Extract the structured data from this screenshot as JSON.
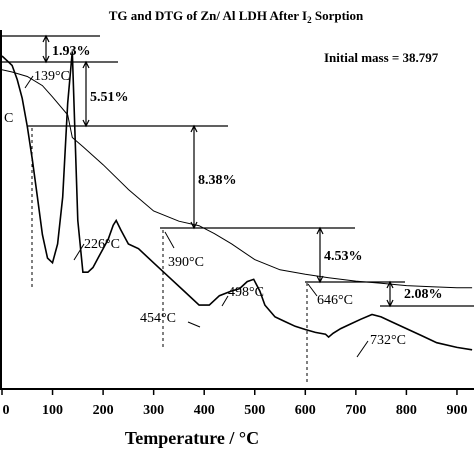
{
  "chart_data": {
    "type": "line",
    "title": "TG and DTG of Zn/ Al LDH After I",
    "title_subscript": "2",
    "title_suffix": " Sorption",
    "xlabel": "Temperature / °C",
    "xlim": [
      0,
      930
    ],
    "xticks": [
      {
        "value": 0,
        "label": "0"
      },
      {
        "value": 100,
        "label": "100"
      },
      {
        "value": 200,
        "label": "200"
      },
      {
        "value": 300,
        "label": "300"
      },
      {
        "value": 400,
        "label": "400"
      },
      {
        "value": 500,
        "label": "500"
      },
      {
        "value": 600,
        "label": "600"
      },
      {
        "value": 700,
        "label": "700"
      },
      {
        "value": 800,
        "label": "800"
      },
      {
        "value": 900,
        "label": "900"
      }
    ],
    "initial_mass_label": "Initial mass = 38.797",
    "series": [
      {
        "curve": "TG",
        "x": [
          0,
          20,
          50,
          80,
          100,
          130,
          139,
          160,
          200,
          250,
          300,
          350,
          390,
          420,
          454,
          500,
          550,
          600,
          646,
          700,
          750,
          800,
          850,
          900,
          930
        ],
        "y": [
          100,
          99.8,
          99.4,
          98.6,
          97.6,
          96.0,
          94.0,
          93.2,
          91.6,
          89.4,
          87.5,
          86.6,
          86.2,
          85.5,
          84.6,
          83.2,
          82.3,
          81.9,
          81.6,
          81.3,
          81.1,
          80.9,
          80.8,
          80.7,
          80.7
        ]
      },
      {
        "curve": "DTG",
        "x": [
          0,
          10,
          20,
          30,
          40,
          50,
          60,
          70,
          80,
          90,
          100,
          110,
          120,
          130,
          139,
          150,
          160,
          170,
          180,
          190,
          200,
          210,
          220,
          226,
          235,
          250,
          270,
          300,
          330,
          360,
          390,
          410,
          430,
          454,
          470,
          485,
          498,
          510,
          520,
          540,
          560,
          580,
          600,
          620,
          640,
          646,
          655,
          670,
          690,
          710,
          732,
          750,
          770,
          800,
          830,
          860,
          900,
          930
        ],
        "y": [
          7.0,
          6.9,
          6.8,
          6.5,
          6.1,
          5.5,
          4.8,
          4.0,
          3.2,
          2.7,
          2.6,
          3.0,
          4.0,
          6.0,
          7.1,
          3.5,
          2.4,
          2.4,
          2.5,
          2.7,
          2.9,
          3.1,
          3.4,
          3.5,
          3.3,
          3.0,
          2.9,
          2.6,
          2.3,
          2.0,
          1.7,
          1.7,
          1.9,
          2.0,
          2.05,
          2.2,
          2.25,
          2.0,
          1.7,
          1.45,
          1.35,
          1.25,
          1.18,
          1.12,
          1.08,
          1.02,
          1.1,
          1.2,
          1.3,
          1.4,
          1.5,
          1.45,
          1.35,
          1.2,
          1.05,
          0.9,
          0.8,
          0.75
        ]
      }
    ],
    "peak_labels": [
      {
        "text": "139°C"
      },
      {
        "text": "226°C"
      },
      {
        "text": "454°C"
      },
      {
        "text": "498°C"
      },
      {
        "text": "732°C"
      },
      {
        "text": "390°C"
      },
      {
        "text": "646°C"
      },
      {
        "text": "C"
      }
    ],
    "mass_losses": [
      {
        "label": "1.93%"
      },
      {
        "label": "5.51%"
      },
      {
        "label": "8.38%"
      },
      {
        "label": "4.53%"
      },
      {
        "label": "2.08%"
      }
    ]
  }
}
